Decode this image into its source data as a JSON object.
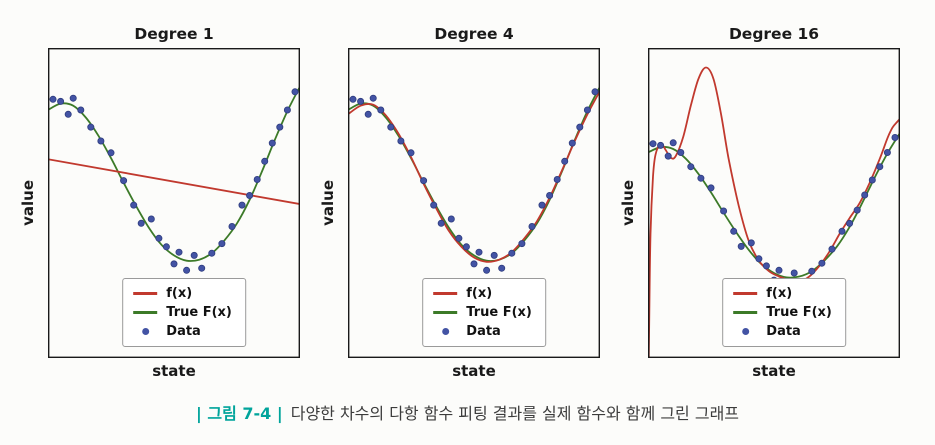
{
  "colors": {
    "fx": "#c1392e",
    "true_fx": "#3c7a28",
    "data": "#4353a4",
    "data_edge": "#2e3c7e",
    "axis": "#1a1a1a",
    "caption_accent": "#00a49b"
  },
  "chart_data": {
    "type": "line+scatter",
    "xlim": [
      0,
      1
    ],
    "grid": false,
    "legend_position": "lower center",
    "common": {
      "xlabel": "state",
      "ylabel": "value",
      "legend": [
        "f(x)",
        "True F(x)",
        "Data"
      ],
      "true_curve": {
        "x": [
          0,
          0.05,
          0.1,
          0.15,
          0.2,
          0.25,
          0.3,
          0.35,
          0.4,
          0.45,
          0.5,
          0.55,
          0.6,
          0.65,
          0.7,
          0.75,
          0.8,
          0.85,
          0.9,
          0.95,
          1
        ],
        "y": [
          0.62,
          0.68,
          0.66,
          0.55,
          0.38,
          0.17,
          -0.06,
          -0.28,
          -0.48,
          -0.64,
          -0.74,
          -0.79,
          -0.78,
          -0.72,
          -0.6,
          -0.44,
          -0.22,
          0.05,
          0.34,
          0.61,
          0.84
        ]
      },
      "data_points": {
        "x": [
          0.02,
          0.05,
          0.08,
          0.1,
          0.13,
          0.17,
          0.21,
          0.25,
          0.3,
          0.34,
          0.37,
          0.41,
          0.44,
          0.47,
          0.5,
          0.52,
          0.55,
          0.58,
          0.61,
          0.65,
          0.69,
          0.73,
          0.77,
          0.8,
          0.83,
          0.86,
          0.89,
          0.92,
          0.95,
          0.98
        ],
        "y": [
          0.72,
          0.7,
          0.58,
          0.73,
          0.62,
          0.46,
          0.33,
          0.22,
          -0.04,
          -0.27,
          -0.44,
          -0.4,
          -0.58,
          -0.66,
          -0.82,
          -0.71,
          -0.88,
          -0.74,
          -0.86,
          -0.72,
          -0.63,
          -0.47,
          -0.27,
          -0.18,
          -0.03,
          0.14,
          0.31,
          0.46,
          0.62,
          0.79
        ]
      }
    },
    "panels": [
      {
        "title": "Degree 1",
        "ylim": [
          -1.7,
          1.2
        ],
        "fit_curve": {
          "x": [
            0,
            1
          ],
          "y": [
            0.16,
            -0.26
          ]
        }
      },
      {
        "title": "Degree 4",
        "ylim": [
          -1.7,
          1.2
        ],
        "fit_curve": {
          "x": [
            0,
            0.05,
            0.1,
            0.15,
            0.2,
            0.25,
            0.3,
            0.35,
            0.4,
            0.45,
            0.5,
            0.55,
            0.6,
            0.65,
            0.7,
            0.75,
            0.8,
            0.85,
            0.9,
            0.95,
            1
          ],
          "y": [
            0.58,
            0.66,
            0.67,
            0.57,
            0.4,
            0.18,
            -0.07,
            -0.3,
            -0.51,
            -0.66,
            -0.76,
            -0.8,
            -0.78,
            -0.71,
            -0.58,
            -0.42,
            -0.2,
            0.06,
            0.33,
            0.58,
            0.8
          ]
        }
      },
      {
        "title": "Degree 16",
        "ylim": [
          -1.7,
          1.8
        ],
        "fit_curve": {
          "x": [
            0,
            0.005,
            0.01,
            0.02,
            0.03,
            0.05,
            0.07,
            0.09,
            0.11,
            0.14,
            0.17,
            0.2,
            0.23,
            0.26,
            0.29,
            0.32,
            0.36,
            0.4,
            0.44,
            0.48,
            0.52,
            0.56,
            0.6,
            0.64,
            0.68,
            0.72,
            0.76,
            0.8,
            0.84,
            0.88,
            0.92,
            0.95,
            0.97,
            0.99,
            1
          ],
          "y": [
            -2.5,
            -1.2,
            -0.3,
            0.35,
            0.6,
            0.72,
            0.65,
            0.56,
            0.58,
            0.8,
            1.15,
            1.45,
            1.58,
            1.45,
            1.05,
            0.55,
            0.02,
            -0.38,
            -0.6,
            -0.72,
            -0.78,
            -0.82,
            -0.84,
            -0.78,
            -0.66,
            -0.5,
            -0.3,
            -0.12,
            0.05,
            0.28,
            0.55,
            0.78,
            0.9,
            0.97,
            1
          ]
        }
      }
    ]
  },
  "caption": {
    "label": "| 그림 7-4 |",
    "text": "다양한 차수의 다항 함수 피팅 결과를 실제 함수와 함께 그린 그래프"
  }
}
